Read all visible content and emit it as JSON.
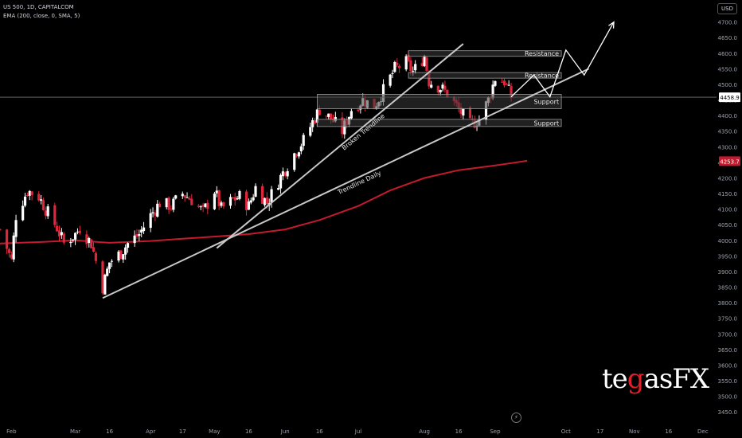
{
  "legend": {
    "line1": "US 500, 1D, CAPITALCOM",
    "line2": "EMA (200, close, 0, SMA, 5)"
  },
  "currency": "USD",
  "logo": {
    "pre": "te",
    "mid": "g",
    "post": "asFX"
  },
  "colors": {
    "background": "#000000",
    "up_candle": "#ffffff",
    "down_candle": "#e0263b",
    "ema_line": "#c41a2e",
    "trendline": "#c8c8c8",
    "zone_fill": "#3a3a3a",
    "zone_border": "#9a9a9a",
    "axis_text": "#9aa0aa"
  },
  "chart_data": {
    "type": "candlestick",
    "symbol": "US 500",
    "timeframe": "1D",
    "y_axis": {
      "range": [
        3430,
        4740
      ],
      "ticks": [
        3450,
        3500,
        3550,
        3600,
        3650,
        3700,
        3750,
        3800,
        3850,
        3900,
        3950,
        4000,
        4050,
        4100,
        4150,
        4200,
        4250,
        4300,
        4350,
        4400,
        4450,
        4500,
        4550,
        4600,
        4650,
        4700
      ]
    },
    "x_axis": {
      "range": [
        "2023-01-27",
        "2023-12-07"
      ],
      "ticks": [
        {
          "label": "Feb",
          "date": "2023-02-01"
        },
        {
          "label": "Mar",
          "date": "2023-03-01"
        },
        {
          "label": "16",
          "date": "2023-03-16"
        },
        {
          "label": "Apr",
          "date": "2023-04-03"
        },
        {
          "label": "17",
          "date": "2023-04-17"
        },
        {
          "label": "May",
          "date": "2023-05-01"
        },
        {
          "label": "16",
          "date": "2023-05-16"
        },
        {
          "label": "Jun",
          "date": "2023-06-01"
        },
        {
          "label": "16",
          "date": "2023-06-16"
        },
        {
          "label": "Jul",
          "date": "2023-07-03"
        },
        {
          "label": "Aug",
          "date": "2023-08-01"
        },
        {
          "label": "16",
          "date": "2023-08-16"
        },
        {
          "label": "Sep",
          "date": "2023-09-01"
        },
        {
          "label": "Oct",
          "date": "2023-10-02"
        },
        {
          "label": "17",
          "date": "2023-10-17"
        },
        {
          "label": "Nov",
          "date": "2023-11-01"
        },
        {
          "label": "16",
          "date": "2023-11-16"
        },
        {
          "label": "Dec",
          "date": "2023-12-01"
        }
      ]
    },
    "close_path": [
      [
        "2023-01-27",
        4035
      ],
      [
        "2023-02-01",
        3935
      ],
      [
        "2023-02-03",
        4080
      ],
      [
        "2023-02-08",
        4160
      ],
      [
        "2023-02-13",
        4140
      ],
      [
        "2023-02-16",
        4100
      ],
      [
        "2023-02-21",
        4040
      ],
      [
        "2023-02-24",
        3990
      ],
      [
        "2023-03-01",
        4020
      ],
      [
        "2023-03-03",
        4040
      ],
      [
        "2023-03-08",
        3990
      ],
      [
        "2023-03-13",
        3850
      ],
      [
        "2023-03-16",
        3930
      ],
      [
        "2023-03-21",
        3960
      ],
      [
        "2023-03-24",
        3990
      ],
      [
        "2023-03-29",
        4020
      ],
      [
        "2023-04-03",
        4080
      ],
      [
        "2023-04-07",
        4120
      ],
      [
        "2023-04-12",
        4110
      ],
      [
        "2023-04-17",
        4150
      ],
      [
        "2023-04-21",
        4130
      ],
      [
        "2023-04-26",
        4090
      ],
      [
        "2023-05-01",
        4160
      ],
      [
        "2023-05-04",
        4100
      ],
      [
        "2023-05-09",
        4130
      ],
      [
        "2023-05-12",
        4140
      ],
      [
        "2023-05-16",
        4110
      ],
      [
        "2023-05-19",
        4170
      ],
      [
        "2023-05-24",
        4120
      ],
      [
        "2023-05-29",
        4190
      ],
      [
        "2023-06-01",
        4230
      ],
      [
        "2023-06-06",
        4290
      ],
      [
        "2023-06-09",
        4320
      ],
      [
        "2023-06-13",
        4380
      ],
      [
        "2023-06-16",
        4420
      ],
      [
        "2023-06-21",
        4390
      ],
      [
        "2023-06-26",
        4350
      ],
      [
        "2023-06-30",
        4420
      ],
      [
        "2023-07-05",
        4450
      ],
      [
        "2023-07-10",
        4430
      ],
      [
        "2023-07-14",
        4480
      ],
      [
        "2023-07-19",
        4550
      ],
      [
        "2023-07-24",
        4570
      ],
      [
        "2023-07-27",
        4540
      ],
      [
        "2023-08-01",
        4590
      ],
      [
        "2023-08-03",
        4510
      ],
      [
        "2023-08-08",
        4490
      ],
      [
        "2023-08-11",
        4470
      ],
      [
        "2023-08-16",
        4420
      ],
      [
        "2023-08-21",
        4370
      ],
      [
        "2023-08-25",
        4390
      ],
      [
        "2023-08-29",
        4450
      ],
      [
        "2023-09-01",
        4520
      ],
      [
        "2023-09-05",
        4510
      ],
      [
        "2023-09-08",
        4460
      ]
    ],
    "ema": {
      "name": "EMA (200, close, 0, SMA, 5)",
      "points": [
        [
          "2023-01-27",
          3990
        ],
        [
          "2023-02-15",
          3995
        ],
        [
          "2023-03-01",
          4000
        ],
        [
          "2023-03-16",
          3992
        ],
        [
          "2023-04-03",
          3998
        ],
        [
          "2023-04-17",
          4005
        ],
        [
          "2023-05-01",
          4012
        ],
        [
          "2023-05-16",
          4020
        ],
        [
          "2023-06-01",
          4035
        ],
        [
          "2023-06-16",
          4065
        ],
        [
          "2023-07-03",
          4110
        ],
        [
          "2023-07-17",
          4160
        ],
        [
          "2023-08-01",
          4200
        ],
        [
          "2023-08-16",
          4225
        ],
        [
          "2023-09-01",
          4240
        ],
        [
          "2023-09-15",
          4255
        ]
      ]
    },
    "last_price": 4458.9,
    "ema_value": 4253.7,
    "horizontal_line": 4458.9,
    "zones": [
      {
        "label": "Resistance",
        "low": 4590,
        "high": 4608,
        "start": "2023-07-25",
        "end": "2023-09-30"
      },
      {
        "label": "Resistance",
        "low": 4520,
        "high": 4538,
        "start": "2023-07-25",
        "end": "2023-09-30"
      },
      {
        "label": "Support",
        "low": 4422,
        "high": 4468,
        "start": "2023-06-15",
        "end": "2023-09-30"
      },
      {
        "label": "Support",
        "low": 4365,
        "high": 4388,
        "start": "2023-06-15",
        "end": "2023-09-30"
      }
    ],
    "trendlines": [
      {
        "label": "Trendline Daily",
        "start": [
          "2023-03-13",
          3815
        ],
        "end": [
          "2023-10-12",
          4550
        ]
      },
      {
        "label": "Broken Trendline",
        "start": [
          "2023-05-02",
          3975
        ],
        "end": [
          "2023-08-18",
          4630
        ]
      }
    ],
    "projection": [
      [
        "2023-09-08",
        4460
      ],
      [
        "2023-09-18",
        4530
      ],
      [
        "2023-09-25",
        4460
      ],
      [
        "2023-10-02",
        4610
      ],
      [
        "2023-10-10",
        4530
      ],
      [
        "2023-10-23",
        4700
      ]
    ]
  }
}
